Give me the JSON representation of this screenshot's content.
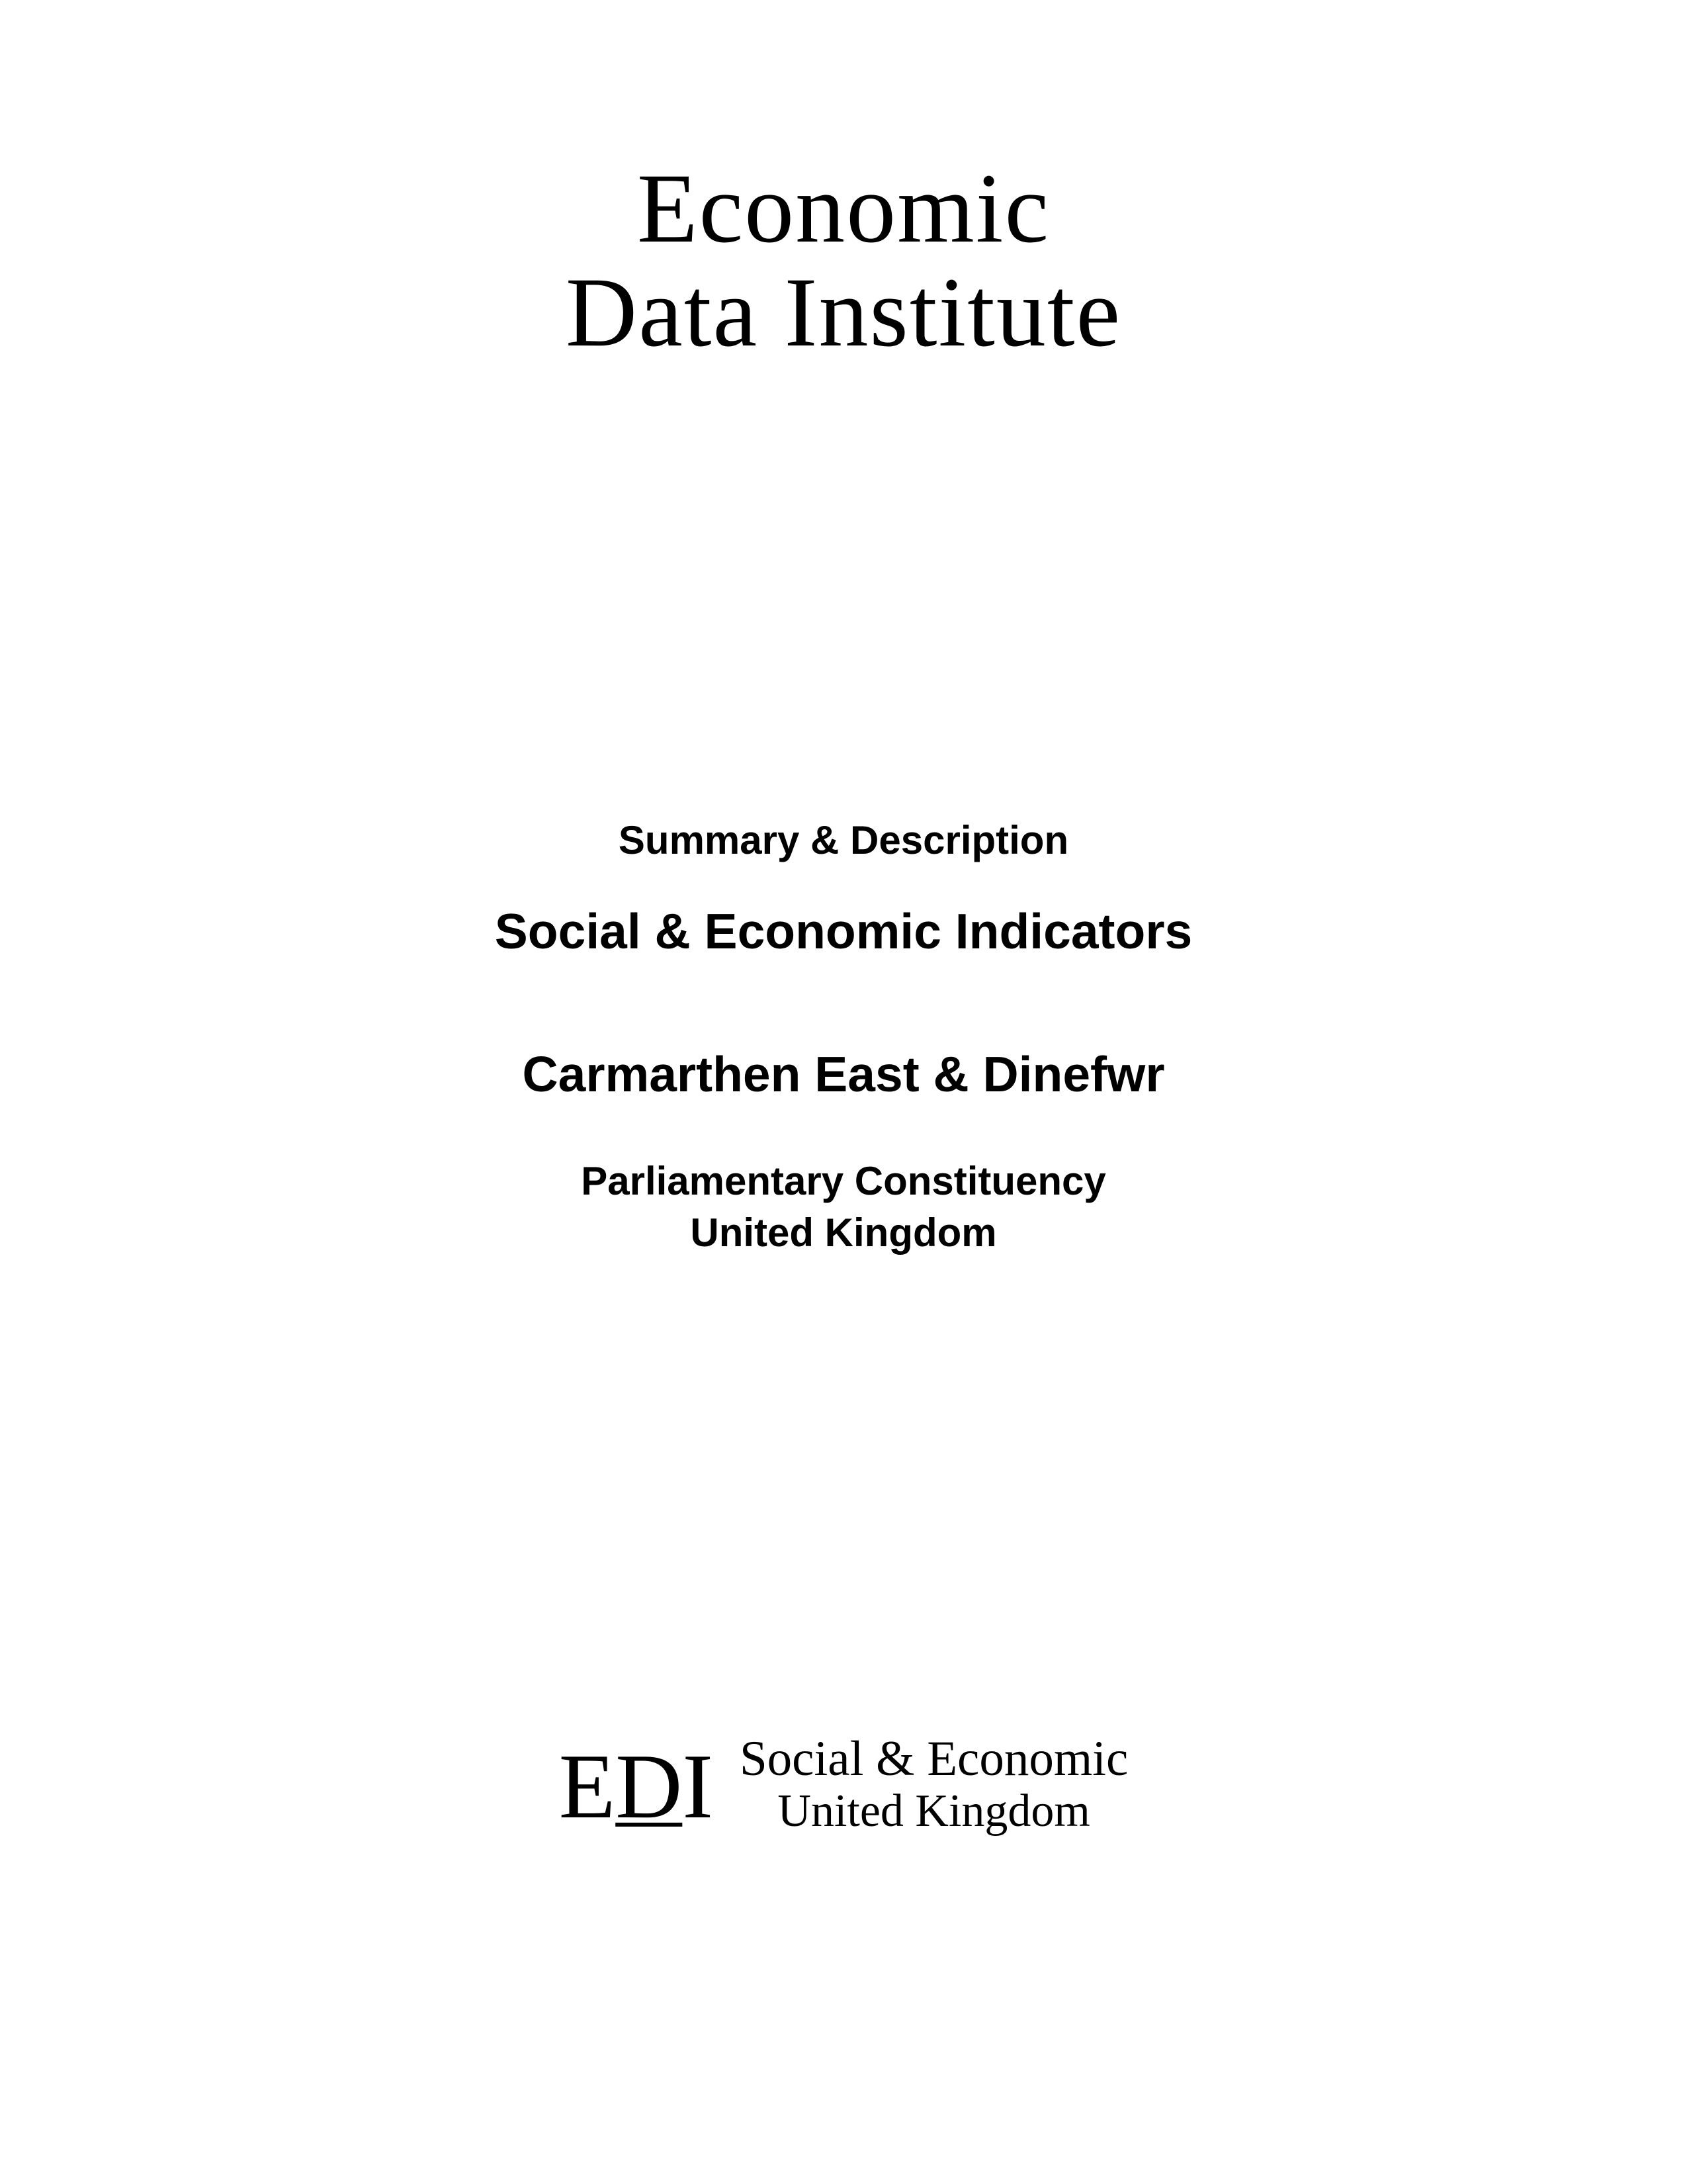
{
  "header": {
    "logo_line1": "Economic",
    "logo_line2": "Data Institute"
  },
  "content": {
    "summary_label": "Summary & Description",
    "indicators_title": "Social & Economic Indicators",
    "region_name": "Carmarthen East & Dinefwr",
    "subtitle_line1": "Parliamentary Constituency",
    "subtitle_line2": "United Kingdom"
  },
  "footer": {
    "mark_e": "E",
    "mark_d": "D",
    "mark_i": "I",
    "text_line1": "Social & Economic",
    "text_line2": "United Kingdom"
  },
  "style": {
    "background_color": "#ffffff",
    "text_color": "#000000",
    "header_fontsize": 150,
    "summary_fontsize": 60,
    "title_fontsize": 75,
    "footer_mark_fontsize": 140,
    "footer_text_fontsize": 75
  }
}
